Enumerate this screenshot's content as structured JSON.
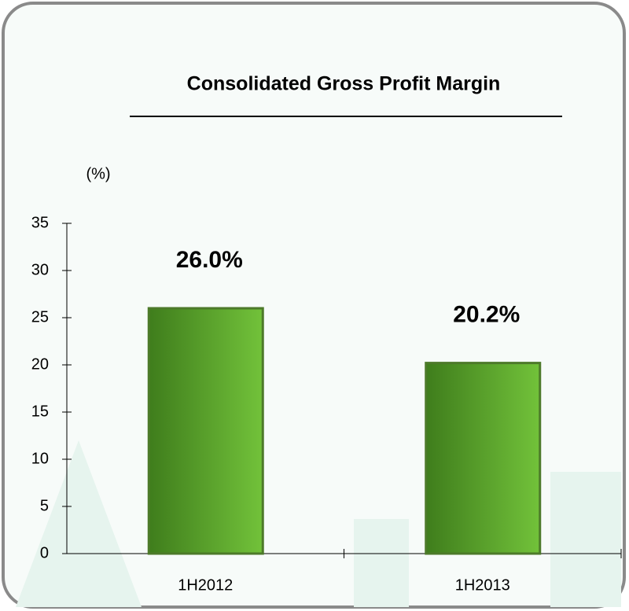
{
  "chart_data": {
    "type": "bar",
    "title": "Consolidated Gross Profit Margin",
    "y_label": "(%)",
    "categories": [
      "1H2012",
      "1H2013"
    ],
    "values": [
      26.0,
      20.2
    ],
    "value_labels": [
      "26.0%",
      "20.2%"
    ],
    "color": "#72c23a",
    "ylim": [
      0,
      35
    ],
    "yticks": [
      0,
      5,
      10,
      15,
      20,
      25,
      30,
      35
    ]
  }
}
